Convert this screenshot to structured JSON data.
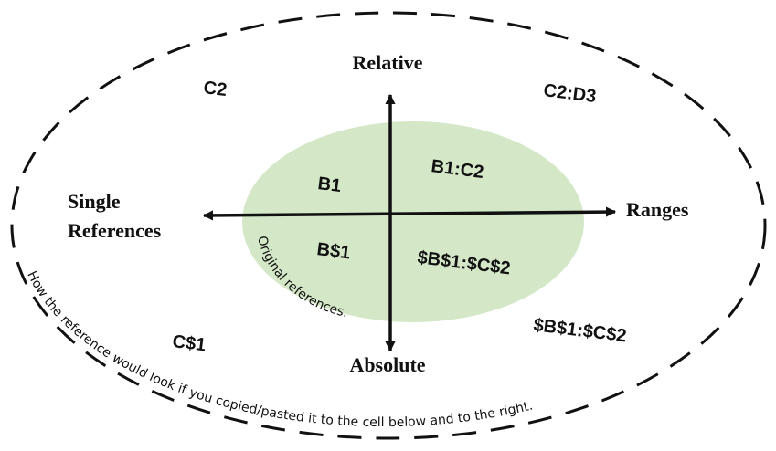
{
  "axes": {
    "top": "Relative",
    "bottom": "Absolute",
    "left_line1": "Single",
    "left_line2": "References",
    "right": "Ranges"
  },
  "original_references": {
    "relative_single": "B1",
    "relative_range": "B1:C2",
    "absolute_single": "B$1",
    "absolute_range": "$B$1:$C$2",
    "caption": "Original references."
  },
  "copied_references": {
    "relative_single": "C2",
    "relative_range": "C2:D3",
    "absolute_single": "C$1",
    "absolute_range": "$B$1:$C$2",
    "caption": "How the reference would look if you copied/pasted it to the cell below and to the right."
  },
  "colors": {
    "inner_fill": "#d4e8c8",
    "stroke": "#111111"
  }
}
